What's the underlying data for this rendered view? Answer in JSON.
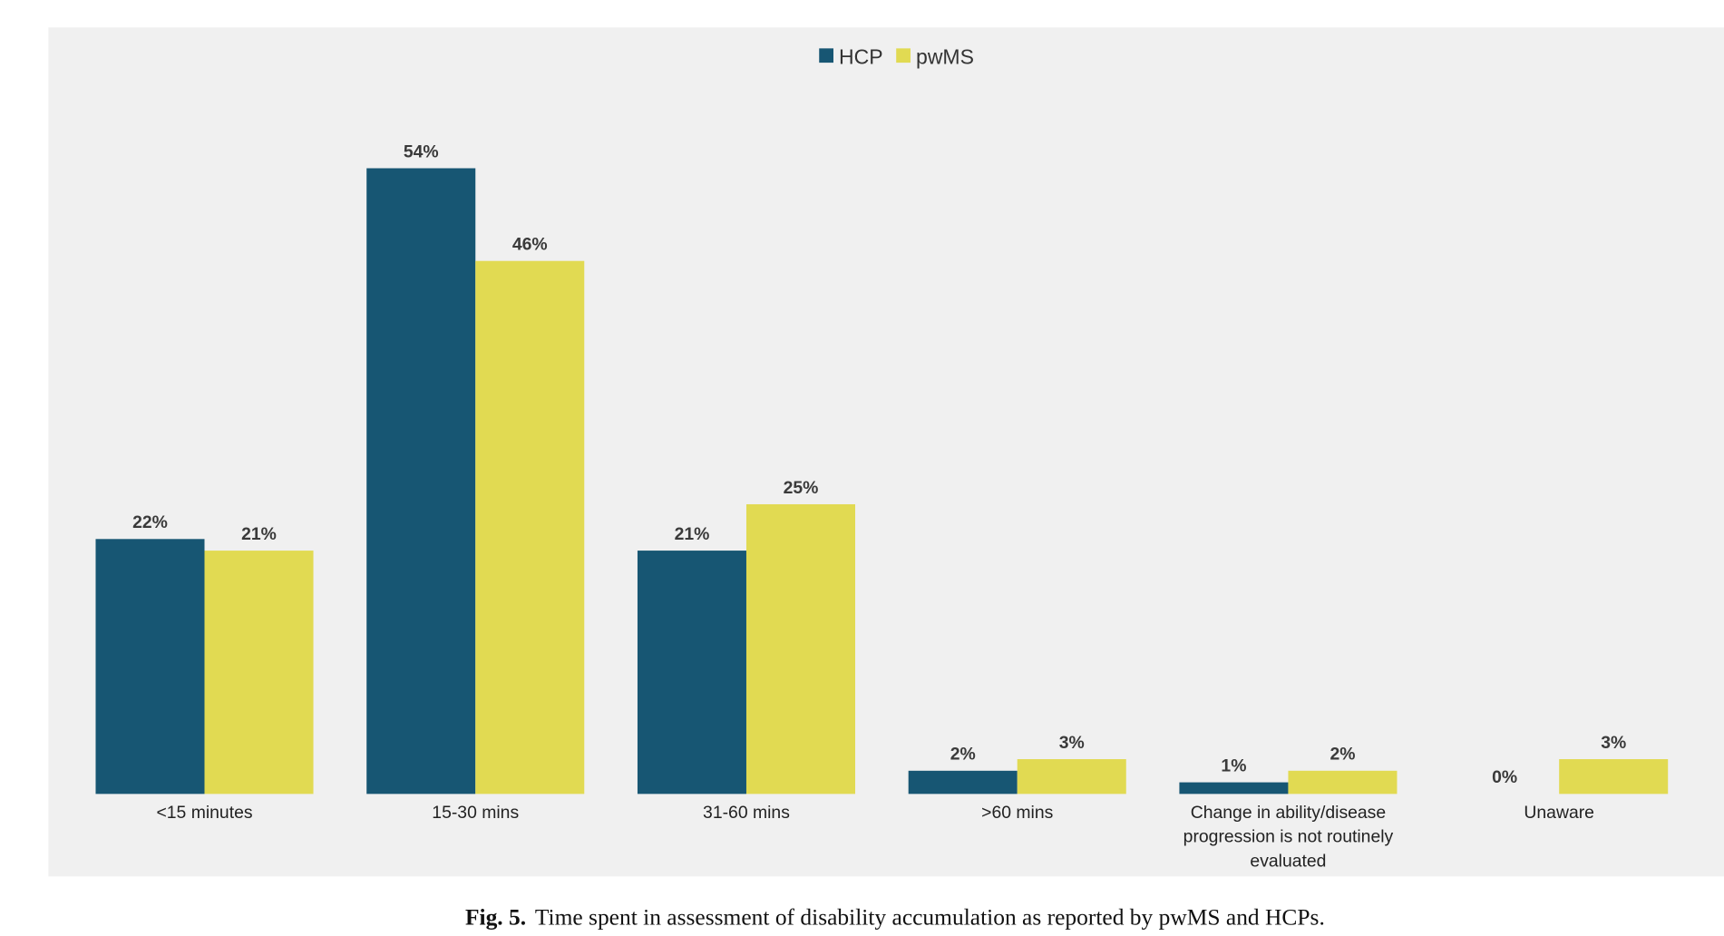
{
  "chart_data": {
    "type": "bar",
    "title": "",
    "xlabel": "",
    "ylabel": "",
    "ylim": [
      0,
      54
    ],
    "grid": false,
    "legend_position": "top-center",
    "categories": [
      "<15 minutes",
      "15-30 mins",
      "31-60 mins",
      ">60 mins",
      "Change in ability/disease progression is not routinely evaluated",
      "Unaware"
    ],
    "category_lines": [
      [
        "<15 minutes"
      ],
      [
        "15-30 mins"
      ],
      [
        "31-60 mins"
      ],
      [
        ">60 mins"
      ],
      [
        "Change in ability/disease",
        "progression is not routinely",
        "evaluated"
      ],
      [
        "Unaware"
      ]
    ],
    "series": [
      {
        "name": "HCP",
        "color": "#175673",
        "values": [
          22,
          54,
          21,
          2,
          1,
          0
        ]
      },
      {
        "name": "pwMS",
        "color": "#e1da52",
        "values": [
          21,
          46,
          25,
          3,
          2,
          3
        ]
      }
    ],
    "value_suffix": "%"
  },
  "caption": {
    "label": "Fig. 5.",
    "text": "Time spent in assessment of disability accumulation as reported by pwMS and HCPs."
  }
}
